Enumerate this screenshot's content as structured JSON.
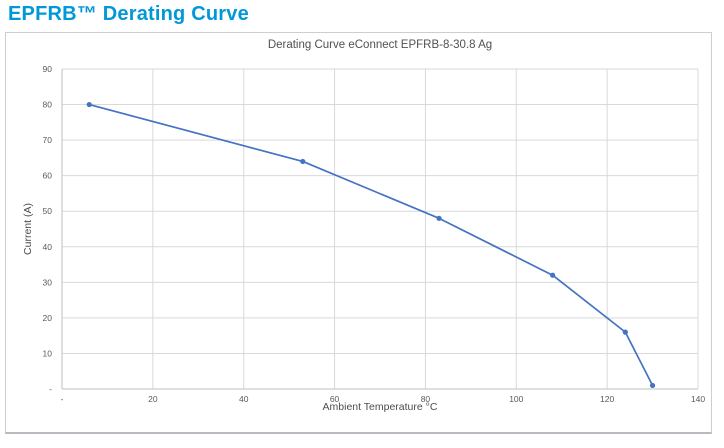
{
  "page": {
    "title": "EPFRB™ Derating Curve",
    "accent_color": "#0098d8"
  },
  "chart_data": {
    "type": "line",
    "title": "Derating Curve eConnect EPFRB-8-30.8 Ag",
    "xlabel": "Ambient Temperature °C",
    "ylabel": "Current (A)",
    "xlim": [
      0,
      140
    ],
    "ylim": [
      0,
      90
    ],
    "x_ticks": [
      0,
      20,
      40,
      60,
      80,
      100,
      120,
      140
    ],
    "y_ticks": [
      0,
      10,
      20,
      30,
      40,
      50,
      60,
      70,
      80,
      90
    ],
    "zero_tick_label": "-",
    "grid": true,
    "legend_position": "none",
    "gridline_color": "#d9d9d9",
    "axis_line_color": "#bfbfbf",
    "series": [
      {
        "color": "#4472c4",
        "marker": "circle",
        "x": [
          6,
          53,
          83,
          108,
          124,
          130
        ],
        "y": [
          80,
          64,
          48,
          32,
          16,
          1
        ]
      }
    ]
  }
}
